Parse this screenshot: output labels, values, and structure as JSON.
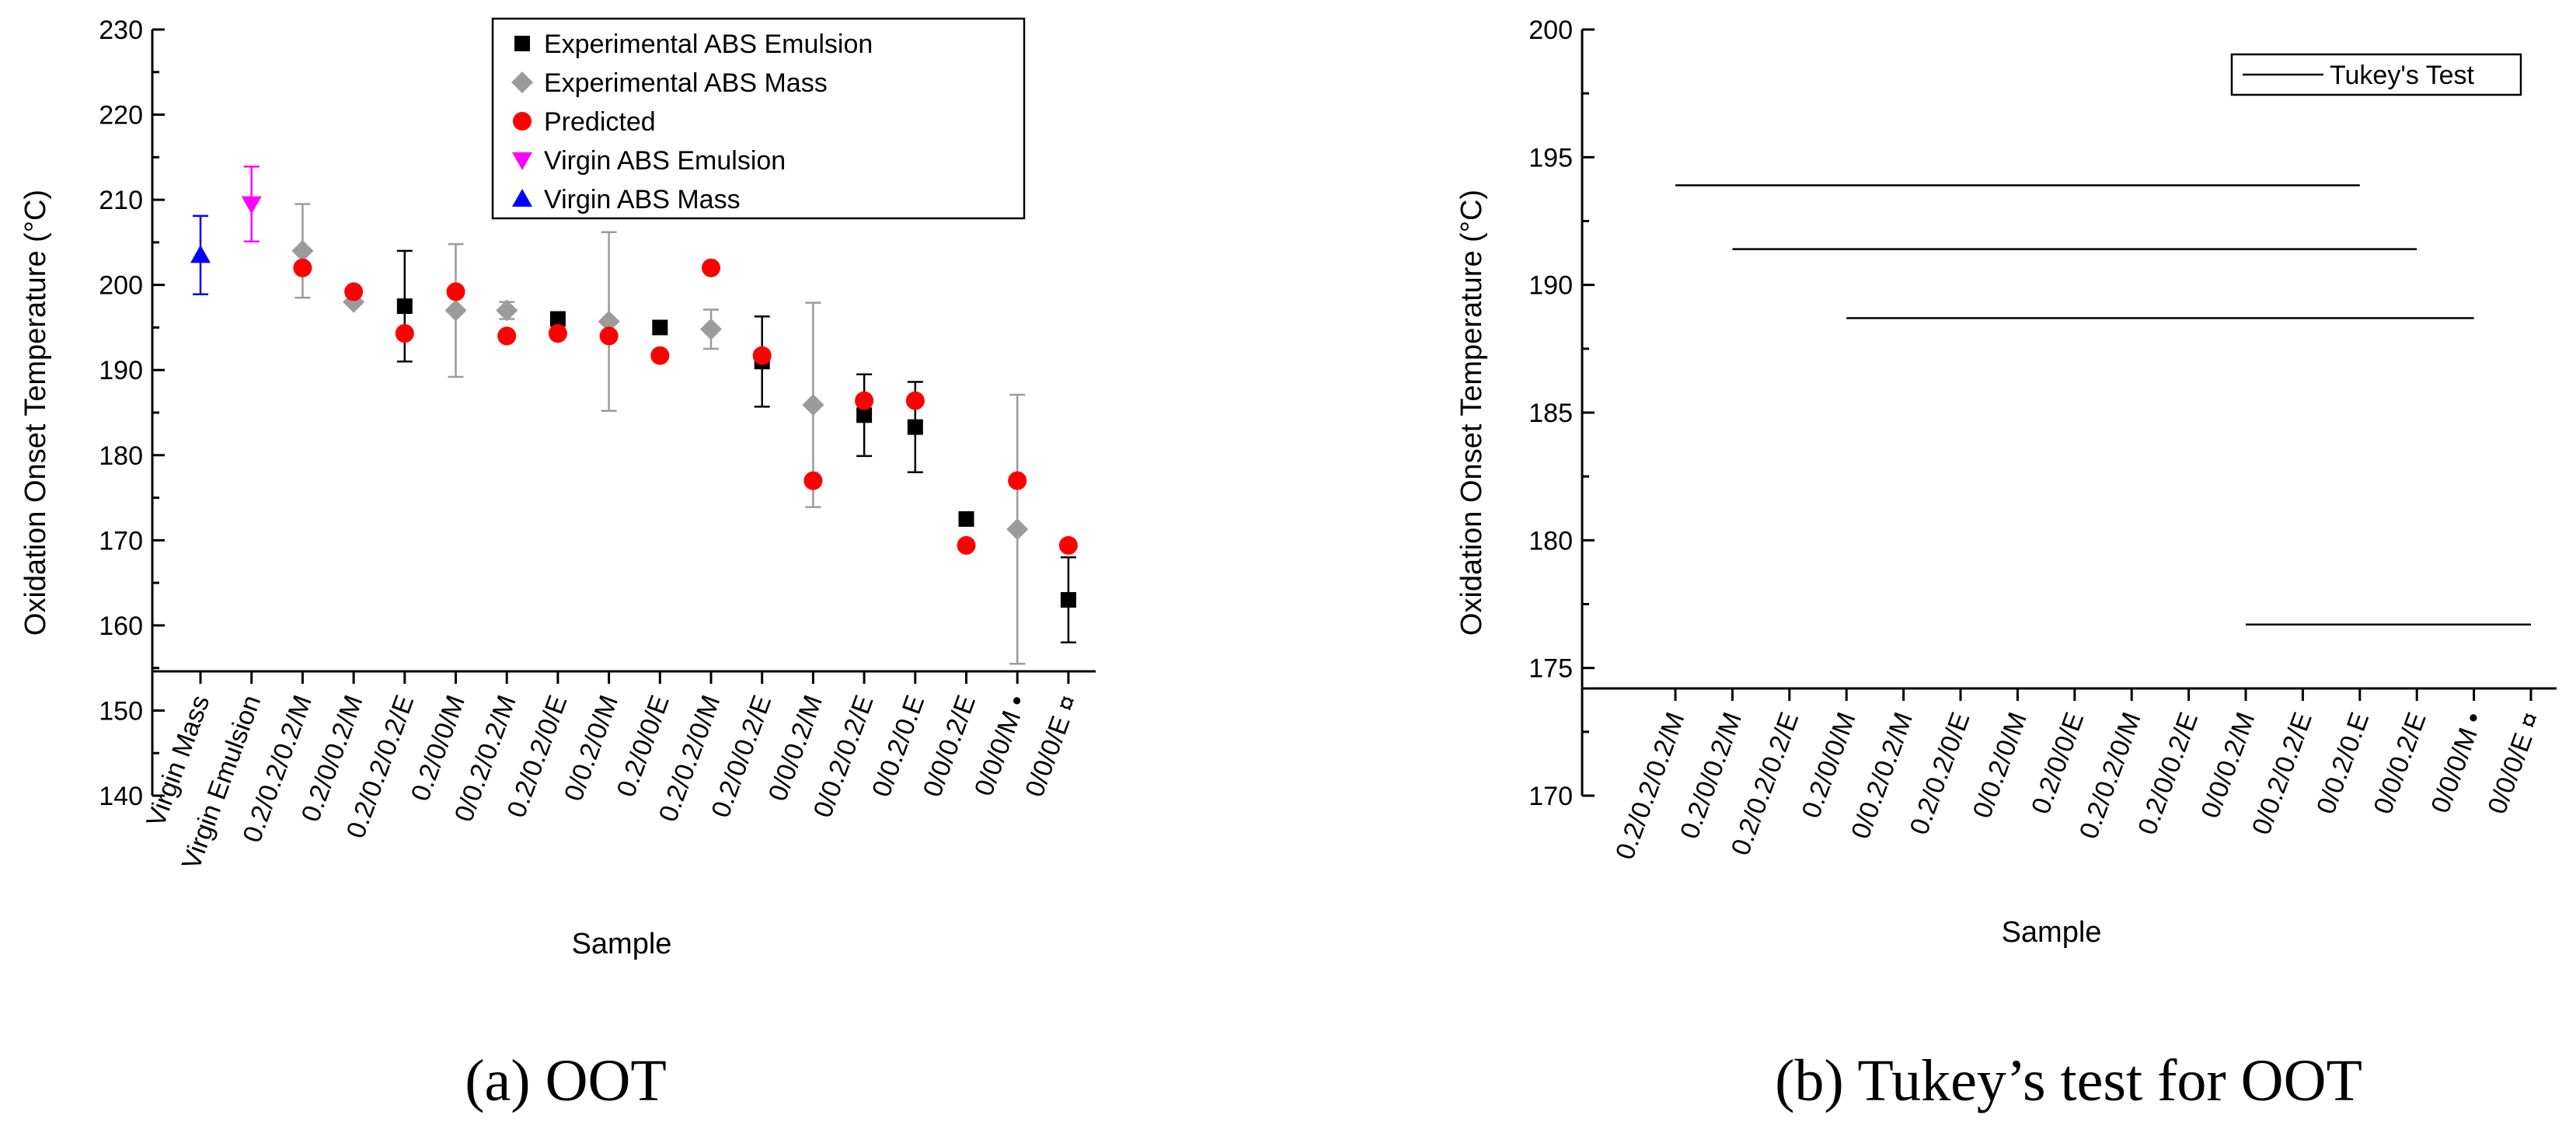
{
  "chart_data": [
    {
      "type": "scatter",
      "panel_caption": "(a) OOT",
      "xlabel": "Sample",
      "ylabel": "Oxidation Onset Temperature (°C)",
      "ylim": [
        140,
        230
      ],
      "yticks": [
        140,
        150,
        160,
        170,
        180,
        190,
        200,
        210,
        220,
        230
      ],
      "categories": [
        "Virgin Mass",
        "Virgin Emulsion",
        "0.2/0.2/0.2/M",
        "0.2/0/0.2/M",
        "0.2/0.2/0.2/E",
        "0.2/0/0/M",
        "0/0.2/0.2/M",
        "0.2/0.2/0/E",
        "0/0.2/0/M",
        "0.2/0/0/E",
        "0.2/0.2/0/M",
        "0.2/0/0.2/E",
        "0/0/0.2/M",
        "0/0.2/0.2/E",
        "0/0.2/0.E",
        "0/0/0.2/E",
        "0/0/0/M •",
        "0/0/0/E ¤"
      ],
      "legend_position": "top-center",
      "series": [
        {
          "name": "Experimental ABS Emulsion",
          "marker": "square",
          "color": "#000000",
          "bar_color": "#000000",
          "points": [
            {
              "cat": "0.2/0.2/0.2/E",
              "y": 197.5,
              "err": 6.5
            },
            {
              "cat": "0.2/0.2/0/E",
              "y": 196.0,
              "err": null
            },
            {
              "cat": "0.2/0/0/E",
              "y": 195.0,
              "err": null
            },
            {
              "cat": "0.2/0/0.2/E",
              "y": 191.0,
              "err": 5.3
            },
            {
              "cat": "0/0.2/0.2/E",
              "y": 184.7,
              "err": 4.8
            },
            {
              "cat": "0/0.2/0.E",
              "y": 183.3,
              "err": 5.3
            },
            {
              "cat": "0/0/0.2/E",
              "y": 172.5,
              "err": null
            },
            {
              "cat": "0/0/0/E ¤",
              "y": 163.0,
              "err": 5.0
            }
          ]
        },
        {
          "name": "Experimental ABS Mass",
          "marker": "diamond",
          "color": "#9b9b9b",
          "bar_color": "#9b9b9b",
          "points": [
            {
              "cat": "0.2/0.2/0.2/M",
              "y": 204.0,
              "err": 5.5
            },
            {
              "cat": "0.2/0/0.2/M",
              "y": 198.0,
              "err": null
            },
            {
              "cat": "0.2/0/0/M",
              "y": 197.0,
              "err": 7.8
            },
            {
              "cat": "0/0.2/0.2/M",
              "y": 197.0,
              "err": 1.0
            },
            {
              "cat": "0/0.2/0/M",
              "y": 195.7,
              "err": 10.5
            },
            {
              "cat": "0.2/0.2/0/M",
              "y": 194.8,
              "err": 2.3
            },
            {
              "cat": "0/0/0.2/M",
              "y": 185.9,
              "err": 12.0
            },
            {
              "cat": "0/0/0/M •",
              "y": 171.3,
              "err": 15.8
            }
          ]
        },
        {
          "name": "Predicted",
          "marker": "circle",
          "color": "#ff0000",
          "bar_color": null,
          "points": [
            {
              "cat": "0.2/0.2/0.2/M",
              "y": 202.0
            },
            {
              "cat": "0.2/0/0.2/M",
              "y": 199.2
            },
            {
              "cat": "0.2/0.2/0.2/E",
              "y": 194.3
            },
            {
              "cat": "0.2/0/0/M",
              "y": 199.2
            },
            {
              "cat": "0/0.2/0.2/M",
              "y": 194.0
            },
            {
              "cat": "0.2/0.2/0/E",
              "y": 194.3
            },
            {
              "cat": "0/0.2/0/M",
              "y": 194.0
            },
            {
              "cat": "0.2/0/0/E",
              "y": 191.7
            },
            {
              "cat": "0.2/0.2/0/M",
              "y": 202.0
            },
            {
              "cat": "0.2/0/0.2/E",
              "y": 191.7
            },
            {
              "cat": "0/0/0.2/M",
              "y": 177.0
            },
            {
              "cat": "0/0.2/0.2/E",
              "y": 186.4
            },
            {
              "cat": "0/0.2/0.E",
              "y": 186.4
            },
            {
              "cat": "0/0/0.2/E",
              "y": 169.4
            },
            {
              "cat": "0/0/0/M •",
              "y": 177.0
            },
            {
              "cat": "0/0/0/E ¤",
              "y": 169.4
            }
          ]
        },
        {
          "name": "Virgin ABS Emulsion",
          "marker": "triangle-down",
          "color": "#ff00ff",
          "bar_color": "#ff00ff",
          "points": [
            {
              "cat": "Virgin Emulsion",
              "y": 209.5,
              "err": 4.4
            }
          ]
        },
        {
          "name": "Virgin ABS Mass",
          "marker": "triangle-up",
          "color": "#0000ff",
          "bar_color": "#0000ff",
          "points": [
            {
              "cat": "Virgin Mass",
              "y": 203.5,
              "err": 4.6
            }
          ]
        }
      ]
    },
    {
      "type": "line",
      "panel_caption": "(b) Tukey’s test for OOT",
      "xlabel": "Sample",
      "ylabel": "Oxidation Onset Temperature (°C)",
      "ylim": [
        170,
        200
      ],
      "yticks": [
        170,
        175,
        180,
        185,
        190,
        195,
        200
      ],
      "categories": [
        "0.2/0.2/0.2/M",
        "0.2/0/0.2/M",
        "0.2/0.2/0.2/E",
        "0.2/0/0/M",
        "0/0.2/0.2/M",
        "0.2/0.2/0/E",
        "0/0.2/0/M",
        "0.2/0/0/E",
        "0.2/0.2/0/M",
        "0.2/0/0.2/E",
        "0/0/0.2/M",
        "0/0.2/0.2/E",
        "0/0.2/0.E",
        "0/0/0.2/E",
        "0/0/0/M •",
        "0/0/0/E ¤"
      ],
      "legend_position": "top-right",
      "legend": [
        "Tukey's Test"
      ],
      "tukey_lines": [
        {
          "y": 193.9,
          "from": "0.2/0.2/0.2/M",
          "to": "0/0.2/0.E"
        },
        {
          "y": 191.4,
          "from": "0.2/0/0.2/M",
          "to": "0/0/0.2/E"
        },
        {
          "y": 188.7,
          "from": "0.2/0/0/M",
          "to": "0/0/0/M •"
        },
        {
          "y": 176.7,
          "from": "0/0/0.2/M",
          "to": "0/0/0/E ¤"
        }
      ]
    }
  ]
}
